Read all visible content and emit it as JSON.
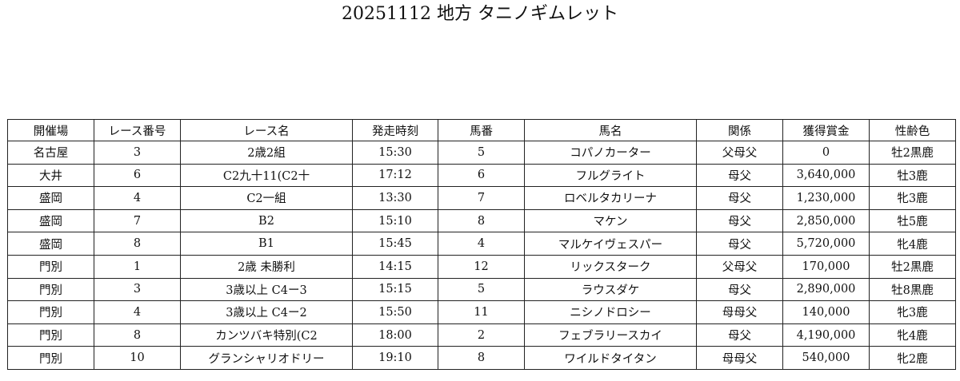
{
  "title": "20251112 地方 タニノギムレット",
  "columns": [
    "開催場",
    "レース番号",
    "レース名",
    "発走時刻",
    "馬番",
    "馬名",
    "関係",
    "獲得賞金",
    "性齢色"
  ],
  "rows": [
    [
      "名古屋",
      "3",
      "2歳2組",
      "15:30",
      "5",
      "コパノカーター",
      "父母父",
      "0",
      "牡2黒鹿"
    ],
    [
      "大井",
      "6",
      "C2九十11(C2十",
      "17:12",
      "6",
      "フルグライト",
      "母父",
      "3,640,000",
      "牡3鹿"
    ],
    [
      "盛岡",
      "4",
      "C2一組",
      "13:30",
      "7",
      "ロベルタカリーナ",
      "母父",
      "1,230,000",
      "牝3鹿"
    ],
    [
      "盛岡",
      "7",
      "B2",
      "15:10",
      "8",
      "マケン",
      "母父",
      "2,850,000",
      "牡5鹿"
    ],
    [
      "盛岡",
      "8",
      "B1",
      "15:45",
      "4",
      "マルケイヴェスパー",
      "母父",
      "5,720,000",
      "牝4鹿"
    ],
    [
      "門別",
      "1",
      "2歳 未勝利",
      "14:15",
      "12",
      "リックスターク",
      "父母父",
      "170,000",
      "牡2黒鹿"
    ],
    [
      "門別",
      "3",
      "3歳以上 C4ー3",
      "15:15",
      "5",
      "ラウスダケ",
      "母父",
      "2,890,000",
      "牡8黒鹿"
    ],
    [
      "門別",
      "4",
      "3歳以上 C4ー2",
      "15:50",
      "11",
      "ニシノドロシー",
      "母母父",
      "140,000",
      "牝3鹿"
    ],
    [
      "門別",
      "8",
      "カンツバキ特別(C2",
      "18:00",
      "2",
      "フェブラリースカイ",
      "母父",
      "4,190,000",
      "牝4鹿"
    ],
    [
      "門別",
      "10",
      "グランシャリオドリー",
      "19:10",
      "8",
      "ワイルドタイタン",
      "母母父",
      "540,000",
      "牝2鹿"
    ]
  ]
}
